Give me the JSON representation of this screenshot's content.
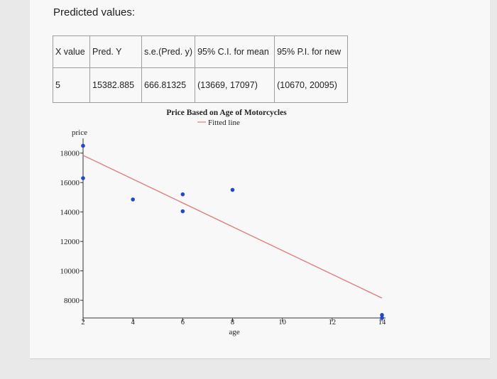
{
  "section_title": "Predicted values:",
  "table": {
    "headers": [
      "X value",
      "Pred. Y",
      "s.e.(Pred. y)",
      "95% C.I. for mean",
      "95% P.I. for new"
    ],
    "rows": [
      [
        "5",
        "15382.885",
        "666.81325",
        "(13669, 17097)",
        "(10670, 20095)"
      ]
    ]
  },
  "chart_data": {
    "type": "scatter",
    "title": "Price Based on Age of Motorcycles",
    "legend": {
      "label": "Fitted line",
      "placement": "top-center"
    },
    "xlabel": "age",
    "ylabel": "price",
    "xticks": [
      2,
      4,
      6,
      8,
      10,
      12,
      14
    ],
    "yticks": [
      8000,
      10000,
      12000,
      14000,
      16000,
      18000
    ],
    "xlim": [
      2,
      14
    ],
    "ylim": [
      6800,
      19000
    ],
    "points": [
      {
        "x": 2,
        "y": 18500
      },
      {
        "x": 2,
        "y": 16300
      },
      {
        "x": 4,
        "y": 14850
      },
      {
        "x": 6,
        "y": 15200
      },
      {
        "x": 6,
        "y": 14050
      },
      {
        "x": 8,
        "y": 15500
      },
      {
        "x": 14,
        "y": 7000
      },
      {
        "x": 14,
        "y": 6800
      }
    ],
    "fitted_line": {
      "x": [
        2,
        14
      ],
      "y": [
        17850,
        8150
      ]
    },
    "colors": {
      "points": "#1f49c9",
      "line": "#e07e7e",
      "axis": "#333333"
    }
  }
}
